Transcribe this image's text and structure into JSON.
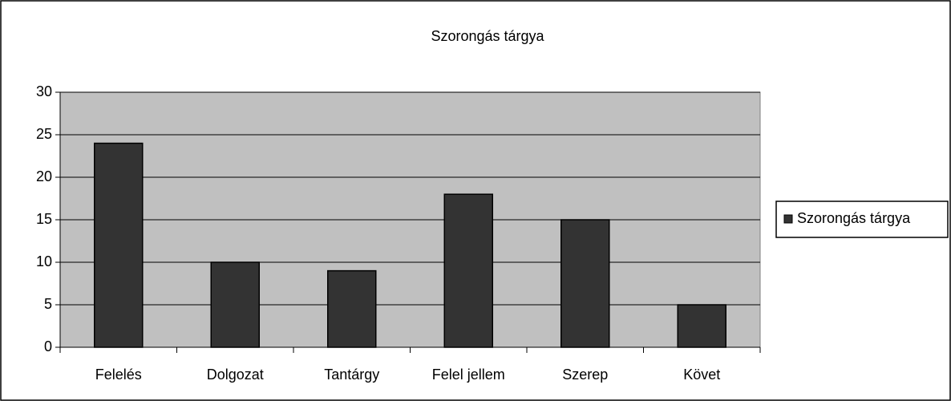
{
  "chart_data": {
    "type": "bar",
    "title": "Szorongás tárgya",
    "categories": [
      "Felelés",
      "Dolgozat",
      "Tantárgy",
      "Felel jellem",
      "Szerep",
      "Követ"
    ],
    "series": [
      {
        "name": "Szorongás tárgya",
        "color": "#333333",
        "values": [
          24,
          10,
          9,
          18,
          15,
          5
        ]
      }
    ],
    "ylim": [
      0,
      30
    ],
    "yticks": [
      0,
      5,
      10,
      15,
      20,
      25,
      30
    ],
    "grid": true,
    "legend": "right"
  }
}
